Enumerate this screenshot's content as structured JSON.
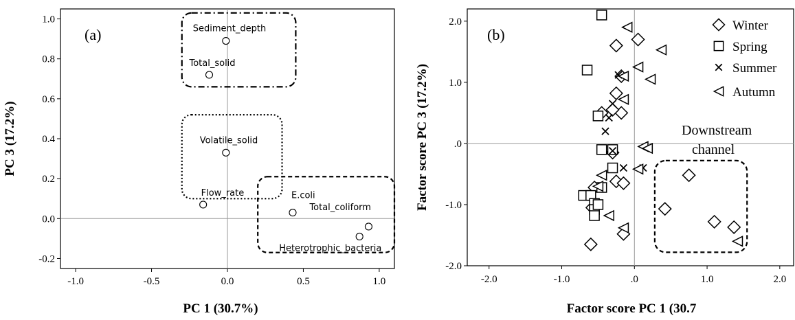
{
  "chart_data": [
    {
      "type": "scatter",
      "panel_label": "(a)",
      "xlabel": "PC 1 (30.7%)",
      "ylabel": "PC 3 (17.2%)",
      "xlim": [
        -1.1,
        1.1
      ],
      "ylim": [
        -0.25,
        1.05
      ],
      "xticks": [
        -1.0,
        -0.5,
        0.0,
        0.5,
        1.0
      ],
      "xtick_labels": [
        "-1.0",
        "-0.5",
        "0.0",
        "0.5",
        "1.0"
      ],
      "yticks": [
        -0.2,
        0.0,
        0.2,
        0.4,
        0.6,
        0.8,
        1.0
      ],
      "ytick_labels": [
        "-0.2",
        "0.0",
        "0.2",
        "0.4",
        "0.6",
        "0.8",
        "1.0"
      ],
      "reference_lines": {
        "x": 0,
        "y": 0
      },
      "points": [
        {
          "label": "Sediment_depth",
          "x": -0.01,
          "y": 0.89
        },
        {
          "label": "Total_solid",
          "x": -0.12,
          "y": 0.72
        },
        {
          "label": "Volatile_solid",
          "x": -0.01,
          "y": 0.33
        },
        {
          "label": "Flow_rate",
          "x": -0.16,
          "y": 0.07
        },
        {
          "label": "E.coli",
          "x": 0.43,
          "y": 0.03
        },
        {
          "label": "Total_coliform",
          "x": 0.93,
          "y": -0.04
        },
        {
          "label": "Heterotrophic_bacteria",
          "x": 0.87,
          "y": -0.09
        }
      ],
      "groups": [
        {
          "style": "dash-dot",
          "members": [
            "Sediment_depth",
            "Total_solid"
          ],
          "x": [
            -0.3,
            0.45
          ],
          "y": [
            0.66,
            1.03
          ]
        },
        {
          "style": "dotted",
          "members": [
            "Volatile_solid",
            "Flow_rate"
          ],
          "x": [
            -0.3,
            0.36
          ],
          "y": [
            0.1,
            0.52
          ]
        },
        {
          "style": "dashed",
          "members": [
            "E.coli",
            "Total_coliform",
            "Heterotrophic_bacteria"
          ],
          "x": [
            0.2,
            1.1
          ],
          "y": [
            -0.17,
            0.21
          ]
        }
      ]
    },
    {
      "type": "scatter",
      "panel_label": "(b)",
      "xlabel": "Factor score PC 1 (30.7",
      "ylabel": "Factor score PC 3 (17.2%)",
      "xlim": [
        -2.3,
        2.2
      ],
      "ylim": [
        -2.0,
        2.2
      ],
      "xticks": [
        -2.0,
        -1.0,
        0.0,
        1.0,
        2.0
      ],
      "xtick_labels": [
        "-2.0",
        "-1.0",
        ".0",
        "1.0",
        "2.0"
      ],
      "yticks": [
        -2.0,
        -1.0,
        0.0,
        1.0,
        2.0
      ],
      "ytick_labels": [
        "-2.0",
        "-1.0",
        ".0",
        "1.0",
        "2.0"
      ],
      "reference_lines": {
        "x": 0,
        "y": 0
      },
      "legend": {
        "position": "top-right"
      },
      "series": [
        {
          "name": "Winter",
          "marker": "diamond",
          "points": [
            [
              0.05,
              1.7
            ],
            [
              -0.25,
              1.6
            ],
            [
              -0.18,
              1.1
            ],
            [
              -0.25,
              0.82
            ],
            [
              -0.18,
              0.5
            ],
            [
              -0.3,
              0.55
            ],
            [
              -0.45,
              0.5
            ],
            [
              -0.3,
              -0.15
            ],
            [
              -0.25,
              -0.62
            ],
            [
              -0.15,
              -0.65
            ],
            [
              -0.55,
              -0.72
            ],
            [
              -0.58,
              -1.05
            ],
            [
              -0.6,
              -1.65
            ],
            [
              -0.15,
              -1.48
            ],
            [
              0.75,
              -0.52
            ],
            [
              0.42,
              -1.07
            ],
            [
              1.1,
              -1.28
            ],
            [
              1.37,
              -1.37
            ]
          ]
        },
        {
          "name": "Spring",
          "marker": "square",
          "points": [
            [
              -0.45,
              2.1
            ],
            [
              -0.65,
              1.2
            ],
            [
              -0.5,
              0.45
            ],
            [
              -0.45,
              -0.1
            ],
            [
              -0.3,
              -0.1
            ],
            [
              -0.3,
              -0.4
            ],
            [
              -0.45,
              -0.72
            ],
            [
              -0.7,
              -0.85
            ],
            [
              -0.6,
              -0.85
            ],
            [
              -0.55,
              -0.98
            ],
            [
              -0.55,
              -1.08
            ],
            [
              -0.55,
              -1.18
            ],
            [
              -0.5,
              -1.0
            ]
          ]
        },
        {
          "name": "Summer",
          "marker": "x",
          "points": [
            [
              -0.22,
              1.12
            ],
            [
              -0.3,
              0.65
            ],
            [
              -0.35,
              0.42
            ],
            [
              -0.4,
              0.2
            ],
            [
              -0.3,
              -0.12
            ],
            [
              0.12,
              -0.4
            ],
            [
              -0.15,
              -0.4
            ]
          ]
        },
        {
          "name": "Autumn",
          "marker": "triangle-left",
          "points": [
            [
              -0.1,
              1.9
            ],
            [
              0.37,
              1.53
            ],
            [
              -0.15,
              1.1
            ],
            [
              0.05,
              1.25
            ],
            [
              0.22,
              1.05
            ],
            [
              -0.15,
              0.72
            ],
            [
              0.12,
              -0.05
            ],
            [
              0.18,
              -0.08
            ],
            [
              0.05,
              -0.42
            ],
            [
              -0.45,
              -0.52
            ],
            [
              -0.5,
              -0.7
            ],
            [
              -0.35,
              -1.18
            ],
            [
              -0.15,
              -1.38
            ],
            [
              1.42,
              -1.6
            ]
          ]
        }
      ],
      "annotations": [
        {
          "text_line1": "Downstream",
          "text_line2": "channel",
          "box_style": "dashed",
          "x": [
            0.28,
            1.55
          ],
          "y": [
            -1.78,
            -0.28
          ]
        }
      ]
    }
  ]
}
